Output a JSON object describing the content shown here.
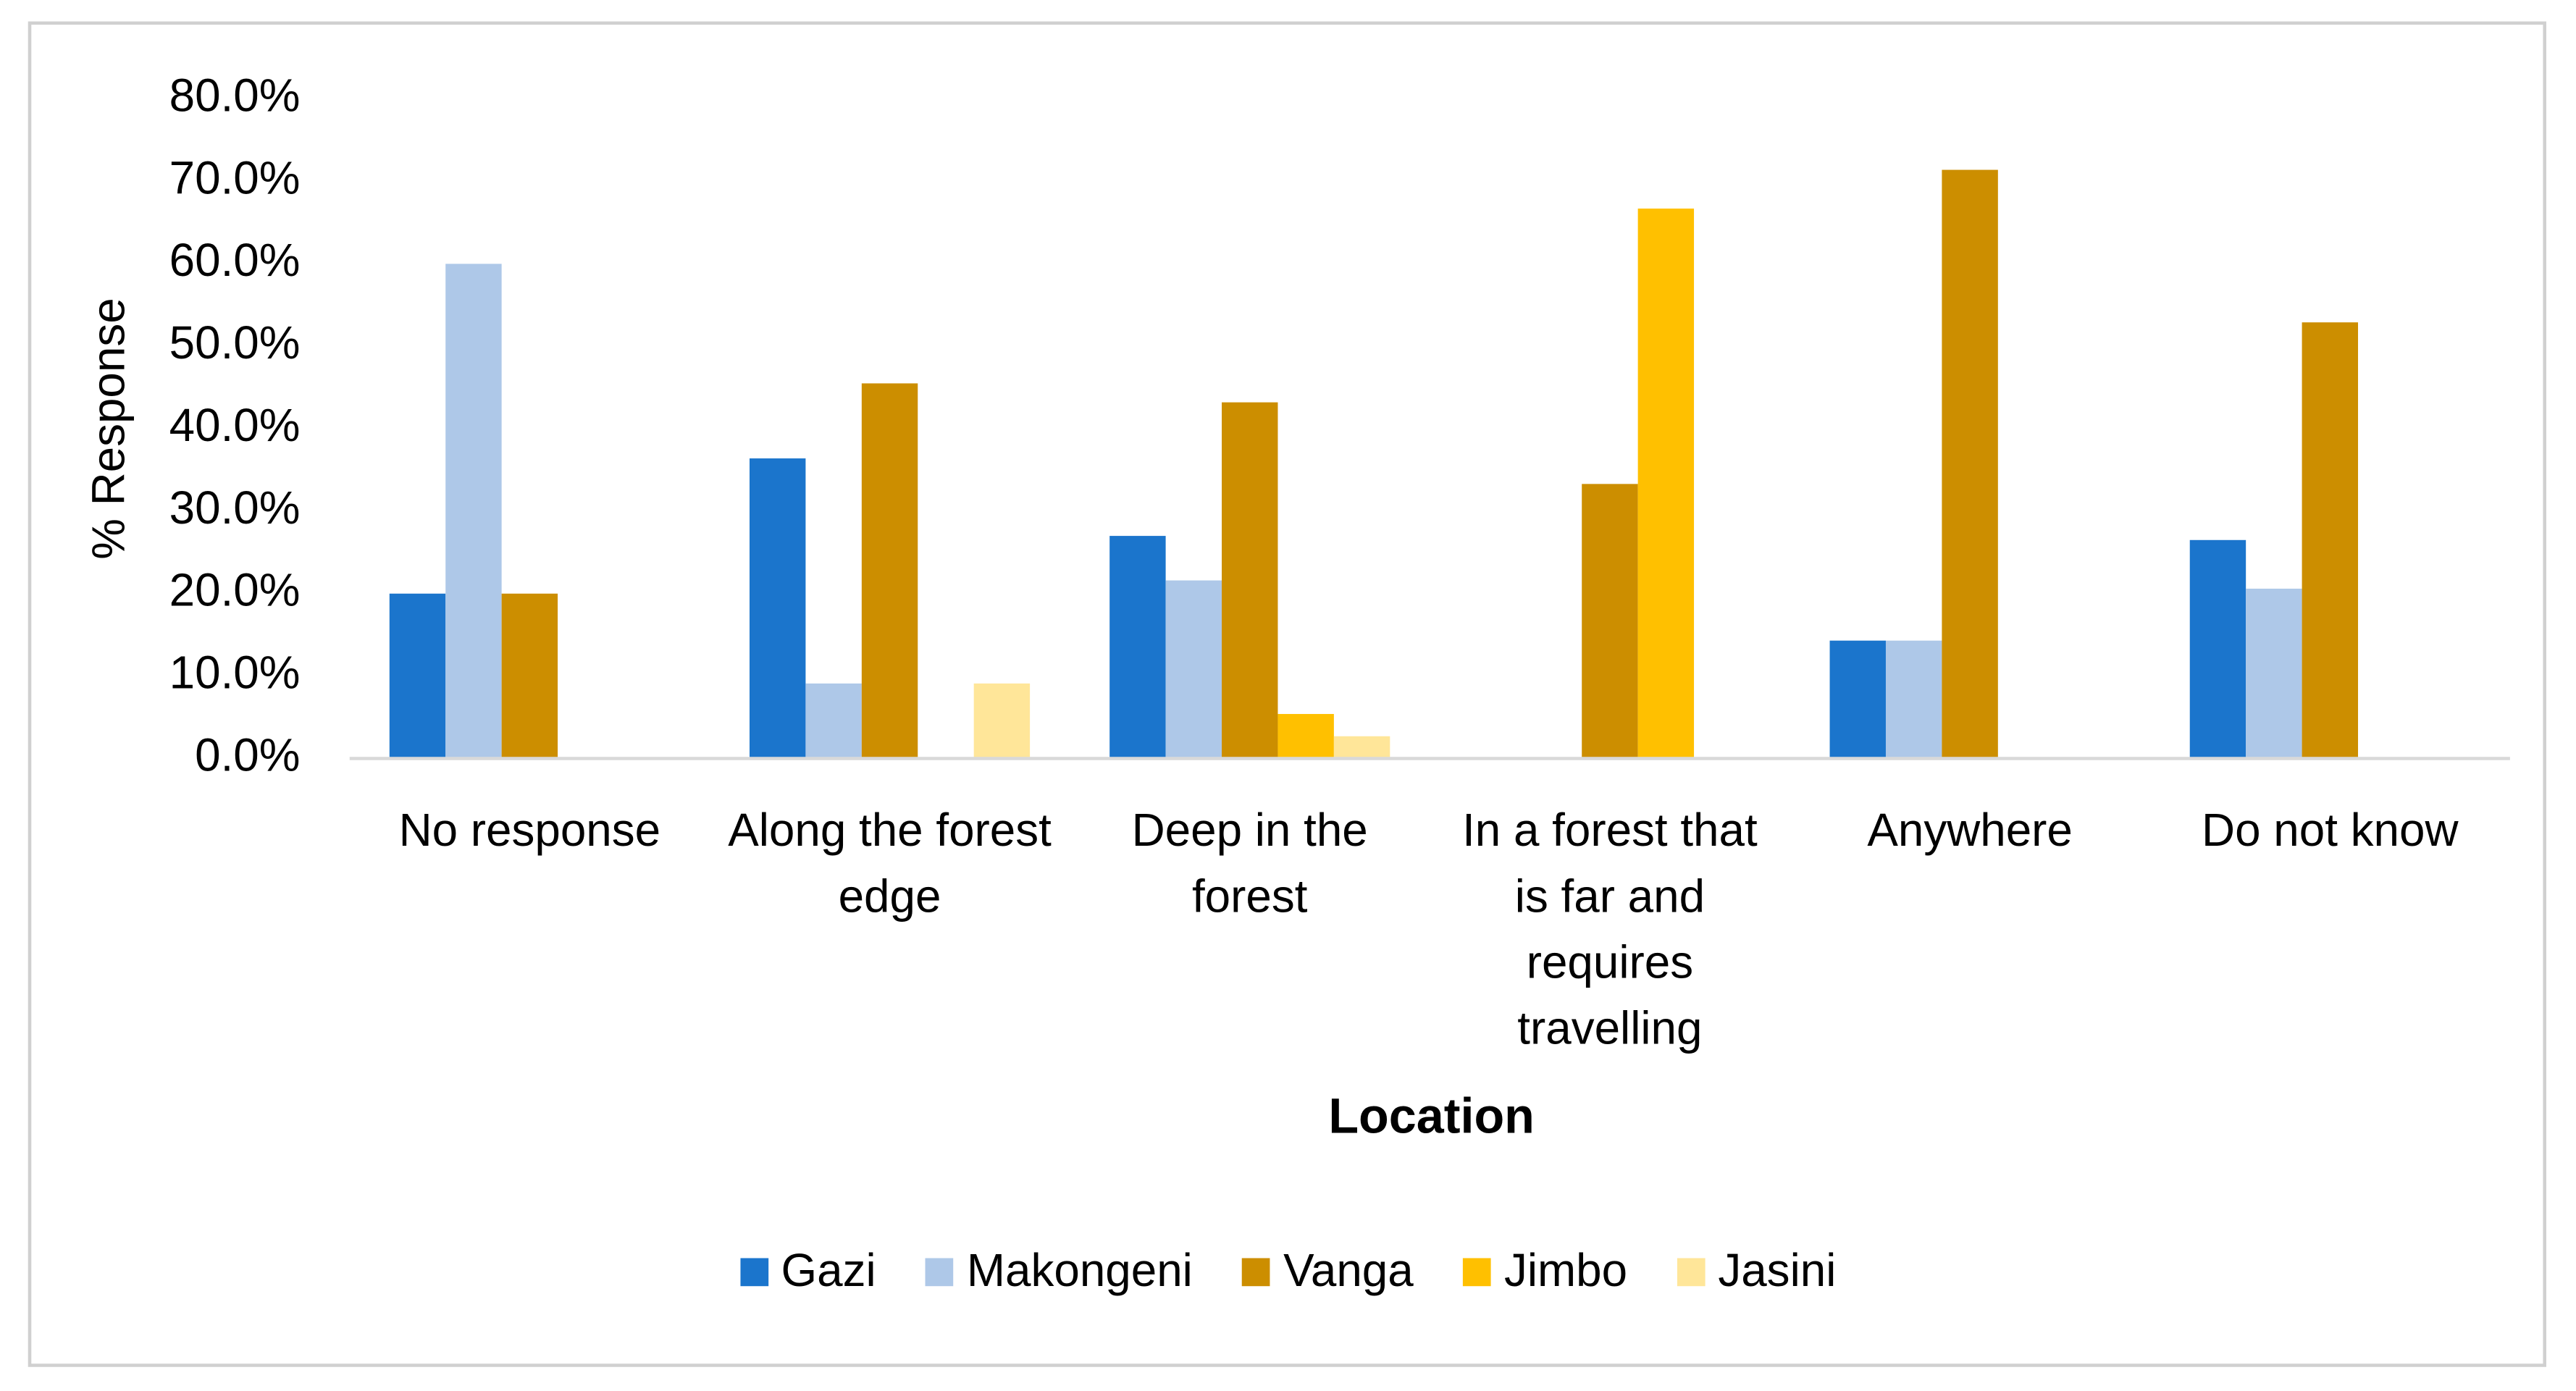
{
  "chart_data": {
    "type": "bar",
    "x_label": "Location",
    "y_label": "% Response",
    "categories": [
      "No response",
      "Along the forest edge",
      "Deep in the forest",
      "In a forest that is far and requires travelling",
      "Anywhere",
      "Do not know"
    ],
    "series": [
      {
        "name": "Gazi",
        "color": "#1b75cc",
        "values": [
          20,
          36.4,
          27.0,
          0,
          14.3,
          26.5
        ]
      },
      {
        "name": "Makongeni",
        "color": "#aec8e8",
        "values": [
          60,
          9.1,
          21.6,
          0,
          14.3,
          20.6
        ]
      },
      {
        "name": "Vanga",
        "color": "#cc8e00",
        "values": [
          20,
          45.5,
          43.2,
          33.3,
          71.4,
          52.9
        ]
      },
      {
        "name": "Jimbo",
        "color": "#ffc000",
        "values": [
          0,
          0,
          5.4,
          66.7,
          0,
          0
        ]
      },
      {
        "name": "Jasini",
        "color": "#ffe699",
        "values": [
          0,
          9.1,
          2.7,
          0,
          0,
          0
        ]
      }
    ],
    "ylim": [
      0,
      80
    ],
    "yticks": [
      {
        "value": 0,
        "label": "0.0%"
      },
      {
        "value": 10,
        "label": "10.0%"
      },
      {
        "value": 20,
        "label": "20.0%"
      },
      {
        "value": 30,
        "label": "30.0%"
      },
      {
        "value": 40,
        "label": "40.0%"
      },
      {
        "value": 50,
        "label": "50.0%"
      },
      {
        "value": 60,
        "label": "60.0%"
      },
      {
        "value": 70,
        "label": "70.0%"
      },
      {
        "value": 80,
        "label": "80.0%"
      }
    ],
    "legend": "bottom"
  }
}
